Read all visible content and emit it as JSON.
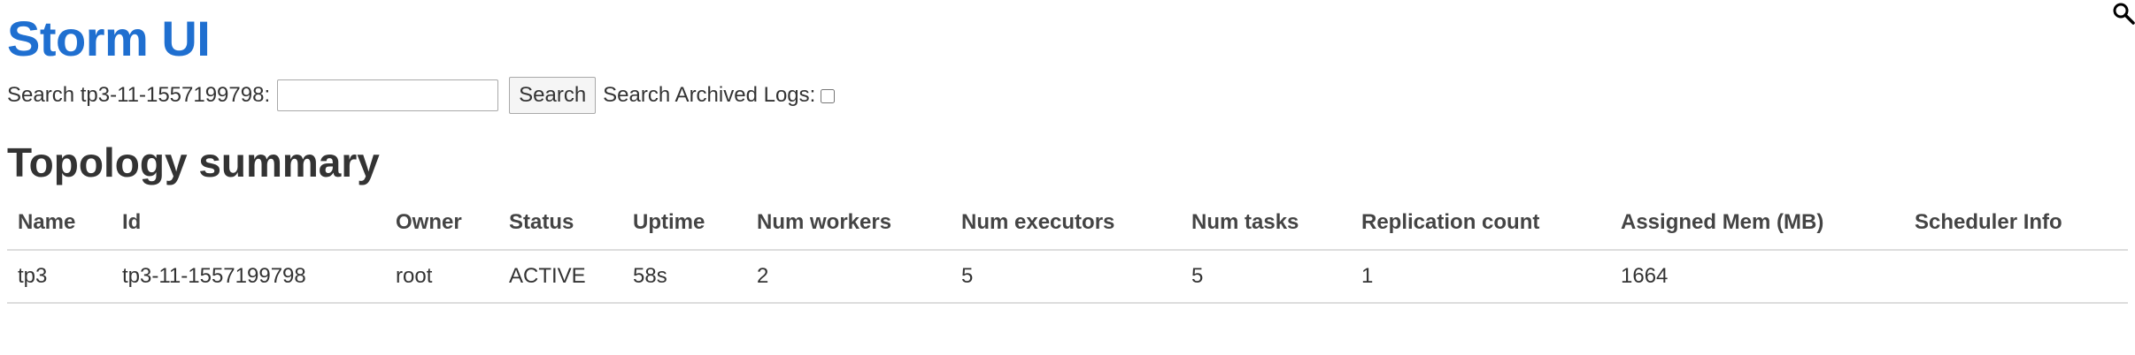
{
  "header": {
    "title": "Storm UI"
  },
  "search": {
    "label": "Search tp3-11-1557199798:",
    "input_value": "",
    "input_placeholder": "",
    "button_label": "Search",
    "archived_label": "Search Archived Logs:",
    "archived_checked": false
  },
  "topology_summary": {
    "title": "Topology summary",
    "columns": [
      "Name",
      "Id",
      "Owner",
      "Status",
      "Uptime",
      "Num workers",
      "Num executors",
      "Num tasks",
      "Replication count",
      "Assigned Mem (MB)",
      "Scheduler Info"
    ],
    "rows": [
      {
        "name": "tp3",
        "id": "tp3-11-1557199798",
        "owner": "root",
        "status": "ACTIVE",
        "uptime": "58s",
        "num_workers": "2",
        "num_executors": "5",
        "num_tasks": "5",
        "replication_count": "1",
        "assigned_mem": "1664",
        "scheduler_info": ""
      }
    ]
  },
  "icons": {
    "corner": "search-icon"
  },
  "colors": {
    "title": "#1f6fd0",
    "text": "#333333",
    "row_border": "#dddddd"
  }
}
